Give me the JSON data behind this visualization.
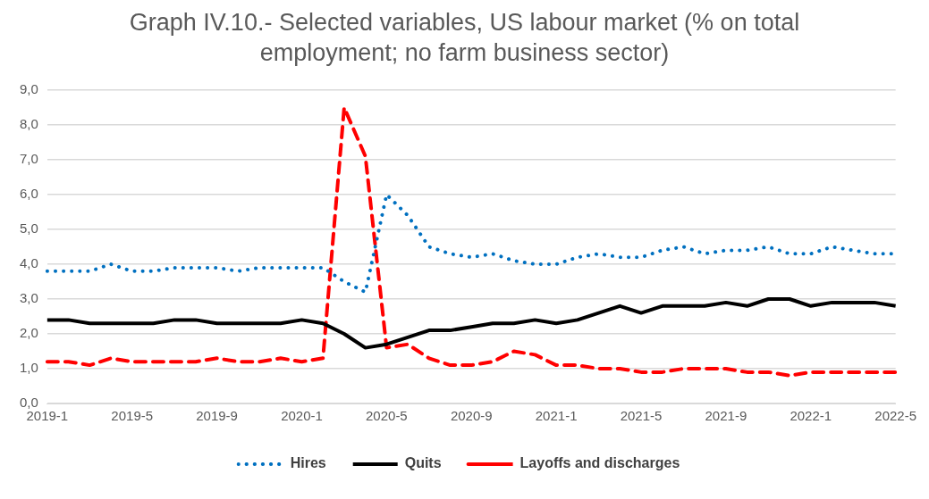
{
  "chart_data": {
    "type": "line",
    "title": "Graph IV.10.- Selected variables, US labour market (% on total employment; no farm business sector)",
    "categories": [
      "2019-1",
      null,
      null,
      null,
      "2019-5",
      null,
      null,
      null,
      "2019-9",
      null,
      null,
      null,
      "2020-1",
      null,
      null,
      null,
      "2020-5",
      null,
      null,
      null,
      "2020-9",
      null,
      null,
      null,
      "2021-1",
      null,
      null,
      null,
      "2021-5",
      null,
      null,
      null,
      "2021-9",
      null,
      null,
      null,
      "2022-1",
      null,
      null,
      null,
      "2022-5"
    ],
    "series": [
      {
        "name": "Hires",
        "color": "#0070c0",
        "line_style": "dotted",
        "values": [
          3.8,
          3.8,
          3.8,
          4.0,
          3.8,
          3.8,
          3.9,
          3.9,
          3.9,
          3.8,
          3.9,
          3.9,
          3.9,
          3.9,
          3.5,
          3.2,
          6.0,
          5.4,
          4.5,
          4.3,
          4.2,
          4.3,
          4.1,
          4.0,
          4.0,
          4.2,
          4.3,
          4.2,
          4.2,
          4.4,
          4.5,
          4.3,
          4.4,
          4.4,
          4.5,
          4.3,
          4.3,
          4.5,
          4.4,
          4.3,
          4.3
        ]
      },
      {
        "name": "Quits",
        "color": "#000000",
        "line_style": "solid",
        "values": [
          2.4,
          2.4,
          2.3,
          2.3,
          2.3,
          2.3,
          2.4,
          2.4,
          2.3,
          2.3,
          2.3,
          2.3,
          2.4,
          2.3,
          2.0,
          1.6,
          1.7,
          1.9,
          2.1,
          2.1,
          2.2,
          2.3,
          2.3,
          2.4,
          2.3,
          2.4,
          2.6,
          2.8,
          2.6,
          2.8,
          2.8,
          2.8,
          2.9,
          2.8,
          3.0,
          3.0,
          2.8,
          2.9,
          2.9,
          2.9,
          2.8
        ]
      },
      {
        "name": "Layoffs and discharges",
        "color": "#ff0000",
        "line_style": "dashed",
        "values": [
          1.2,
          1.2,
          1.1,
          1.3,
          1.2,
          1.2,
          1.2,
          1.2,
          1.3,
          1.2,
          1.2,
          1.3,
          1.2,
          1.3,
          8.5,
          7.1,
          1.6,
          1.7,
          1.3,
          1.1,
          1.1,
          1.2,
          1.5,
          1.4,
          1.1,
          1.1,
          1.0,
          1.0,
          0.9,
          0.9,
          1.0,
          1.0,
          1.0,
          0.9,
          0.9,
          0.8,
          0.9,
          0.9,
          0.9,
          0.9,
          0.9
        ]
      }
    ],
    "ylim": [
      0,
      9
    ],
    "yticks": [
      {
        "value": 0,
        "label": "0,0"
      },
      {
        "value": 1,
        "label": "1,0"
      },
      {
        "value": 2,
        "label": "2,0"
      },
      {
        "value": 3,
        "label": "3,0"
      },
      {
        "value": 4,
        "label": "4,0"
      },
      {
        "value": 5,
        "label": "5,0"
      },
      {
        "value": 6,
        "label": "6,0"
      },
      {
        "value": 7,
        "label": "7,0"
      },
      {
        "value": 8,
        "label": "8,0"
      },
      {
        "value": 9,
        "label": "9,0"
      }
    ],
    "grid": "y",
    "legend": "bottom",
    "marker": "none"
  }
}
